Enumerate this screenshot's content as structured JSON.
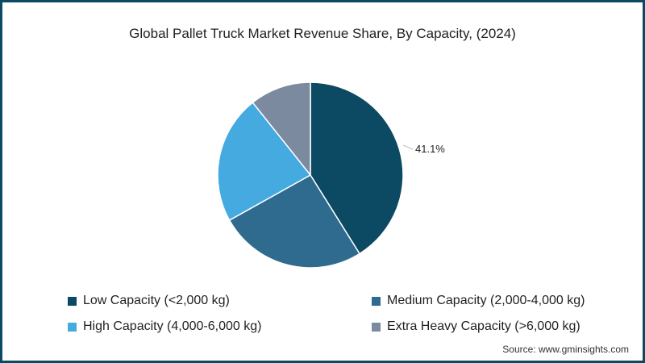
{
  "title": "Global Pallet Truck Market Revenue Share, By Capacity, (2024)",
  "source": "Source: www.gminsights.com",
  "border_color": "#0b4a62",
  "chart_data": {
    "type": "pie",
    "title": "Global Pallet Truck Market Revenue Share, By Capacity, (2024)",
    "categories": [
      "Low Capacity (<2,000 kg)",
      "Medium Capacity (2,000-4,000 kg)",
      "High Capacity (4,000-6,000 kg)",
      "Extra Heavy Capacity (>6,000 kg)"
    ],
    "values": [
      41.1,
      25.8,
      22.4,
      10.7
    ],
    "colors": [
      "#0b4a62",
      "#2e6b8e",
      "#45aae0",
      "#7b8a9e"
    ],
    "data_labels": [
      {
        "category": "Low Capacity (<2,000 kg)",
        "text": "41.1%"
      }
    ],
    "start_angle": 0,
    "direction": "clockwise",
    "legend_position": "bottom"
  },
  "legend": [
    {
      "label": "Low Capacity (<2,000 kg)",
      "color": "#0b4a62"
    },
    {
      "label": "Medium Capacity (2,000-4,000 kg)",
      "color": "#2e6b8e"
    },
    {
      "label": "High Capacity (4,000-6,000 kg)",
      "color": "#45aae0"
    },
    {
      "label": "Extra Heavy Capacity (>6,000 kg)",
      "color": "#7b8a9e"
    }
  ],
  "label_text": "41.1%"
}
